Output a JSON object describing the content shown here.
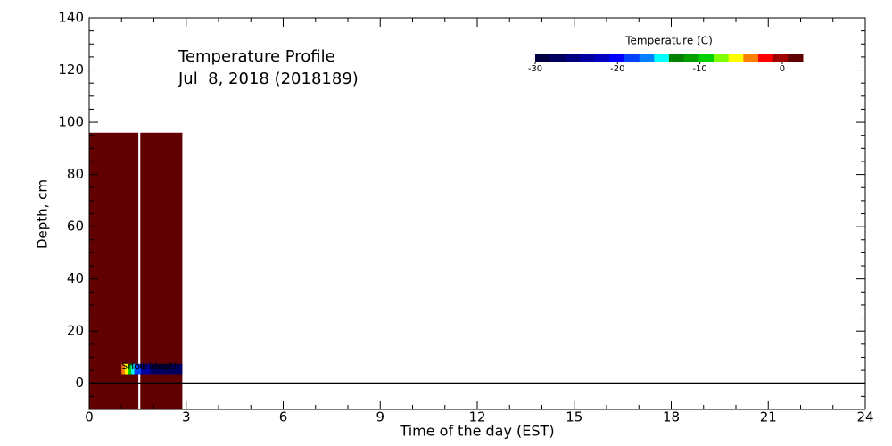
{
  "chart_data": {
    "type": "heatmap",
    "title": "Temperature Profile",
    "subtitle": "Jul  8, 2018 (2018189)",
    "xlabel": "Time of the day (EST)",
    "ylabel": "Depth, cm",
    "xlim": [
      0,
      24
    ],
    "ylim": [
      -10,
      140
    ],
    "xticks": [
      0,
      3,
      6,
      9,
      12,
      15,
      18,
      21,
      24
    ],
    "yticks": [
      0,
      20,
      40,
      60,
      80,
      100,
      120,
      140
    ],
    "xminor": [
      1,
      2,
      4,
      5,
      7,
      8,
      10,
      11,
      13,
      14,
      16,
      17,
      19,
      20,
      22,
      23
    ],
    "yminor": [
      -5,
      5,
      10,
      15,
      25,
      30,
      35,
      45,
      50,
      55,
      65,
      70,
      75,
      85,
      90,
      95,
      105,
      110,
      115,
      125,
      130,
      135
    ],
    "zero_line": true,
    "cells": [
      {
        "x": [
          0,
          1.52
        ],
        "y": [
          -10,
          96
        ],
        "value": 2
      },
      {
        "x": [
          1.58,
          2.88
        ],
        "y": [
          -10,
          96
        ],
        "value": 2
      },
      {
        "x": [
          1.0,
          1.1
        ],
        "y": [
          3.5,
          7.5
        ],
        "value": -4
      },
      {
        "x": [
          1.1,
          1.2
        ],
        "y": [
          3.5,
          7.5
        ],
        "value": -6
      },
      {
        "x": [
          1.2,
          1.3
        ],
        "y": [
          3.5,
          7.5
        ],
        "value": -9
      },
      {
        "x": [
          1.3,
          1.4
        ],
        "y": [
          3.5,
          7.5
        ],
        "value": -15
      },
      {
        "x": [
          1.4,
          1.6
        ],
        "y": [
          3.5,
          7.5
        ],
        "value": -18
      },
      {
        "x": [
          1.6,
          1.9
        ],
        "y": [
          3.5,
          7.5
        ],
        "value": -24
      },
      {
        "x": [
          1.9,
          2.88
        ],
        "y": [
          3.5,
          7.5
        ],
        "value": -27
      }
    ],
    "annotations": [
      {
        "text": "Snow depth",
        "x": 1.0,
        "y": 3
      },
      {
        "text": "Ice level",
        "x": 1.3,
        "y": 3
      }
    ],
    "colorbar": {
      "title": "Temperature (C)",
      "clim": [
        -30,
        2.5
      ],
      "ticks": [
        -30,
        -20,
        -10,
        0
      ],
      "colors": [
        "#000040",
        "#000060",
        "#000080",
        "#0000a0",
        "#0000c0",
        "#0000ff",
        "#0040ff",
        "#0080ff",
        "#00ffff",
        "#008000",
        "#00a000",
        "#00d000",
        "#80ff00",
        "#ffff00",
        "#ff8000",
        "#ff0000",
        "#a00000",
        "#600000"
      ]
    }
  }
}
